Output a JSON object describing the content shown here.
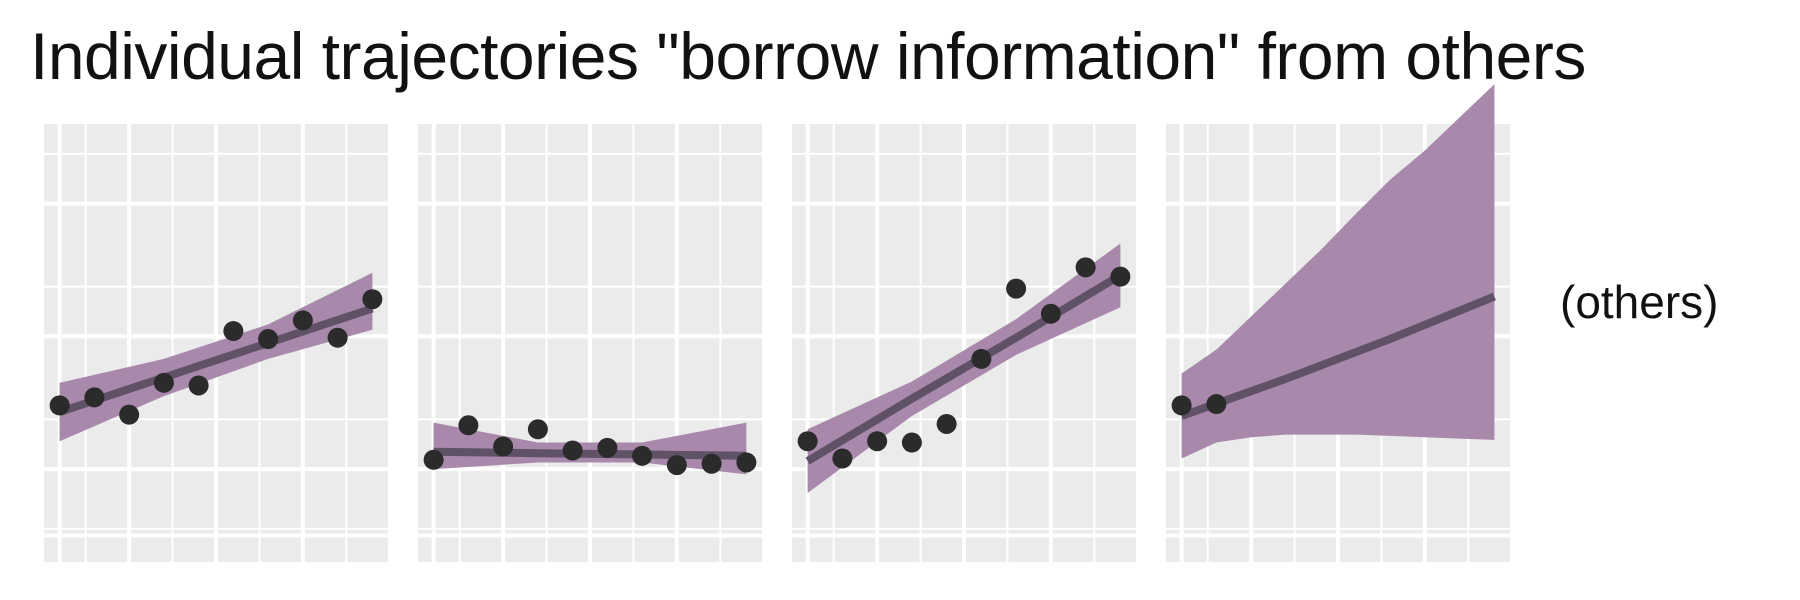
{
  "title": "Individual trajectories \"borrow information\" from others",
  "side_label": "(others)",
  "colors": {
    "panel_bg": "#ebebeb",
    "grid": "#ffffff",
    "ribbon": "#a888ab",
    "fit_line": "#5f5266",
    "points": "#2b2b2b"
  },
  "chart_data": [
    {
      "type": "scatter",
      "panel": 1,
      "xlim": [
        0.55,
        10.45
      ],
      "ylim": [
        -0.2,
        3.1
      ],
      "grid": true,
      "points": {
        "x": [
          1,
          2,
          3,
          4,
          5,
          6,
          7,
          8,
          9,
          10
        ],
        "y": [
          0.98,
          1.04,
          0.91,
          1.15,
          1.13,
          1.54,
          1.48,
          1.62,
          1.49,
          1.78
        ]
      },
      "fit": {
        "x": [
          1,
          4,
          7,
          10
        ],
        "y": [
          0.93,
          1.19,
          1.45,
          1.71
        ]
      },
      "band": {
        "x": [
          1,
          4,
          7,
          10
        ],
        "lower": [
          0.71,
          1.05,
          1.33,
          1.55
        ],
        "upper": [
          1.15,
          1.33,
          1.59,
          1.98
        ]
      }
    },
    {
      "type": "scatter",
      "panel": 2,
      "xlim": [
        0.55,
        10.45
      ],
      "ylim": [
        -0.2,
        3.1
      ],
      "grid": true,
      "points": {
        "x": [
          1,
          2,
          3,
          4,
          5,
          6,
          7,
          8,
          9,
          10
        ],
        "y": [
          0.57,
          0.83,
          0.67,
          0.8,
          0.64,
          0.66,
          0.6,
          0.53,
          0.54,
          0.55
        ]
      },
      "fit": {
        "x": [
          1,
          4,
          7,
          10
        ],
        "y": [
          0.63,
          0.62,
          0.61,
          0.6
        ]
      },
      "band": {
        "x": [
          1,
          4,
          7,
          10
        ],
        "lower": [
          0.5,
          0.55,
          0.55,
          0.46
        ],
        "upper": [
          0.85,
          0.7,
          0.7,
          0.85
        ]
      }
    },
    {
      "type": "scatter",
      "panel": 3,
      "xlim": [
        0.55,
        10.45
      ],
      "ylim": [
        -0.2,
        3.1
      ],
      "grid": true,
      "points": {
        "x": [
          1,
          2,
          3,
          4,
          5,
          6,
          7,
          8,
          9,
          10
        ],
        "y": [
          0.71,
          0.58,
          0.71,
          0.7,
          0.84,
          1.33,
          1.86,
          1.67,
          2.02,
          1.95
        ]
      },
      "fit": {
        "x": [
          1,
          4,
          7,
          10
        ],
        "y": [
          0.56,
          1.03,
          1.49,
          1.96
        ]
      },
      "band": {
        "x": [
          1,
          4,
          7,
          10
        ],
        "lower": [
          0.32,
          0.9,
          1.36,
          1.72
        ],
        "upper": [
          0.8,
          1.16,
          1.63,
          2.2
        ]
      }
    },
    {
      "type": "scatter",
      "panel": 4,
      "xlim": [
        0.55,
        10.45
      ],
      "ylim": [
        -0.2,
        3.1
      ],
      "grid": true,
      "points": {
        "x": [
          1,
          2
        ],
        "y": [
          0.98,
          0.99
        ]
      },
      "fit": {
        "x": [
          1,
          4,
          7,
          10
        ],
        "y": [
          0.9,
          1.18,
          1.48,
          1.8
        ]
      },
      "band": {
        "x": [
          1,
          2,
          3,
          4,
          5,
          6,
          7,
          8,
          9,
          10
        ],
        "lower": [
          0.58,
          0.7,
          0.74,
          0.76,
          0.76,
          0.76,
          0.75,
          0.74,
          0.73,
          0.72
        ],
        "upper": [
          1.22,
          1.4,
          1.65,
          1.9,
          2.15,
          2.42,
          2.68,
          2.9,
          3.15,
          3.4
        ]
      }
    }
  ]
}
